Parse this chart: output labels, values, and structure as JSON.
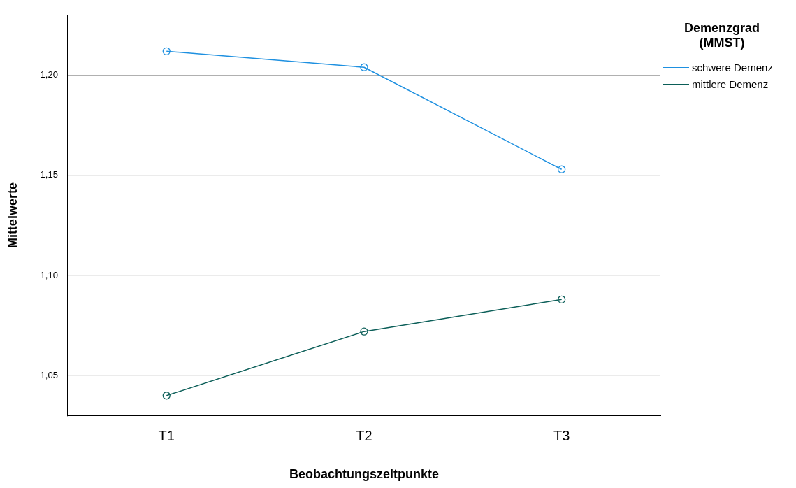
{
  "chart_data": {
    "type": "line",
    "xlabel": "Beobachtungszeitpunkte",
    "ylabel": "Mittelwerte",
    "legend_title": "Demenzgrad (MMST)",
    "categories": [
      "T1",
      "T2",
      "T3"
    ],
    "series": [
      {
        "name": "schwere Demenz",
        "color": "#1e90e0",
        "values": [
          1.212,
          1.204,
          1.153
        ]
      },
      {
        "name": "mittlere Demenz",
        "color": "#0b5e58",
        "values": [
          1.04,
          1.072,
          1.088
        ]
      }
    ],
    "ylim": [
      1.03,
      1.23
    ],
    "yticks": [
      {
        "value": 1.05,
        "label": "1,05"
      },
      {
        "value": 1.1,
        "label": "1,10"
      },
      {
        "value": 1.15,
        "label": "1,15"
      },
      {
        "value": 1.2,
        "label": "1,20"
      }
    ],
    "grid": "y",
    "legend": "top right",
    "marker": "circle",
    "line_style": "solid"
  }
}
